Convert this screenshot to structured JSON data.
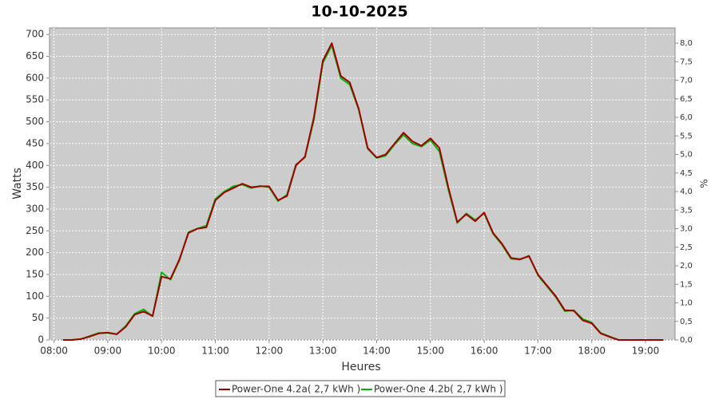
{
  "chart_data": {
    "type": "line",
    "title": "10-10-2025",
    "x_label": "Heures",
    "y_label": "Watts",
    "y2_label": "%",
    "x": [
      "08:10",
      "08:20",
      "08:30",
      "08:40",
      "08:50",
      "09:00",
      "09:10",
      "09:20",
      "09:30",
      "09:40",
      "09:50",
      "10:00",
      "10:10",
      "10:20",
      "10:30",
      "10:40",
      "10:50",
      "11:00",
      "11:10",
      "11:20",
      "11:30",
      "11:40",
      "11:50",
      "12:00",
      "12:10",
      "12:20",
      "12:30",
      "12:40",
      "12:50",
      "13:00",
      "13:10",
      "13:20",
      "13:30",
      "13:40",
      "13:50",
      "14:00",
      "14:10",
      "14:20",
      "14:30",
      "14:40",
      "14:50",
      "15:00",
      "15:10",
      "15:20",
      "15:30",
      "15:40",
      "15:50",
      "16:00",
      "16:10",
      "16:20",
      "16:30",
      "16:40",
      "16:50",
      "17:00",
      "17:10",
      "17:20",
      "17:30",
      "17:40",
      "17:50",
      "18:00",
      "18:10",
      "18:20",
      "18:30",
      "18:40",
      "18:50",
      "19:00",
      "19:10",
      "19:20"
    ],
    "series": [
      {
        "name": "Power-One 4.2a( 2,7 kWh )",
        "color": "#a00000",
        "values": [
          0,
          0,
          2,
          8,
          15,
          17,
          13,
          30,
          58,
          65,
          55,
          145,
          140,
          185,
          245,
          255,
          258,
          320,
          338,
          348,
          358,
          350,
          352,
          352,
          320,
          330,
          400,
          420,
          510,
          640,
          680,
          605,
          590,
          530,
          440,
          418,
          425,
          450,
          475,
          455,
          445,
          462,
          440,
          350,
          270,
          288,
          272,
          292,
          245,
          220,
          188,
          185,
          192,
          150,
          125,
          100,
          68,
          67,
          45,
          38,
          15,
          7,
          0,
          0,
          0,
          0,
          0,
          0
        ]
      },
      {
        "name": "Power-One 4.2b( 2,7 kWh )",
        "color": "#00b400",
        "values": [
          0,
          0,
          2,
          9,
          16,
          16,
          13,
          32,
          60,
          70,
          54,
          155,
          138,
          183,
          247,
          255,
          262,
          323,
          340,
          352,
          356,
          348,
          353,
          350,
          318,
          333,
          402,
          418,
          505,
          635,
          675,
          600,
          585,
          528,
          438,
          417,
          422,
          448,
          470,
          450,
          443,
          458,
          432,
          345,
          268,
          290,
          275,
          290,
          243,
          218,
          186,
          184,
          193,
          148,
          123,
          98,
          66,
          68,
          48,
          40,
          16,
          8,
          0,
          0,
          0,
          0,
          0,
          0
        ]
      }
    ],
    "xlim": [
      "07:55",
      "19:33"
    ],
    "xticks": [
      "08:00",
      "09:00",
      "10:00",
      "11:00",
      "12:00",
      "13:00",
      "14:00",
      "15:00",
      "16:00",
      "17:00",
      "18:00",
      "19:00"
    ],
    "ylim": [
      0,
      715
    ],
    "yticks": [
      0,
      50,
      100,
      150,
      200,
      250,
      300,
      350,
      400,
      450,
      500,
      550,
      600,
      650,
      700
    ],
    "y2lim": [
      0,
      8.41
    ],
    "y2ticks": [
      {
        "value": 0,
        "label": "0,0"
      },
      {
        "value": 0.5,
        "label": "0,5"
      },
      {
        "value": 1,
        "label": "1,0"
      },
      {
        "value": 1.5,
        "label": "1,5"
      },
      {
        "value": 2,
        "label": "2,0"
      },
      {
        "value": 2.5,
        "label": "2,5"
      },
      {
        "value": 3,
        "label": "3,0"
      },
      {
        "value": 3.5,
        "label": "3,5"
      },
      {
        "value": 4,
        "label": "4,0"
      },
      {
        "value": 4.5,
        "label": "4,5"
      },
      {
        "value": 5,
        "label": "5,0"
      },
      {
        "value": 5.5,
        "label": "5,5"
      },
      {
        "value": 6,
        "label": "6,0"
      },
      {
        "value": 6.5,
        "label": "6,5"
      },
      {
        "value": 7,
        "label": "7,0"
      },
      {
        "value": 7.5,
        "label": "7,5"
      },
      {
        "value": 8,
        "label": "8,0"
      }
    ],
    "grid": true,
    "legend": "bottom"
  }
}
